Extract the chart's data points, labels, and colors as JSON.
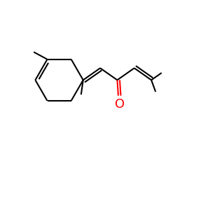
{
  "background_color": "#ffffff",
  "bond_color": "#000000",
  "oxygen_color": "#ff0000",
  "line_width": 1.5,
  "font_size": 13,
  "figsize": [
    3.0,
    3.0
  ],
  "dpi": 100,
  "xlim": [
    0,
    10
  ],
  "ylim": [
    0,
    10
  ]
}
